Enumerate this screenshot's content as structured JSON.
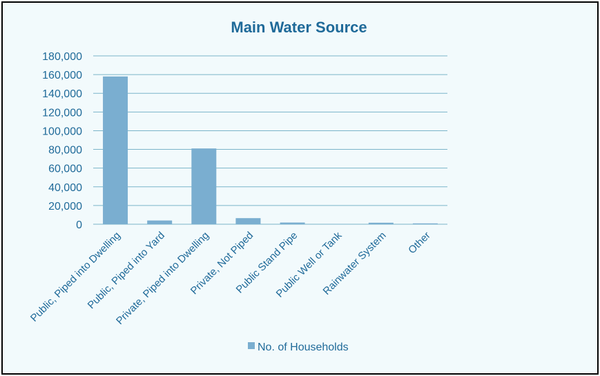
{
  "chart_data": {
    "type": "bar",
    "title": "Main Water Source",
    "categories": [
      "Public, Piped into Dwelling",
      "Public, Piped into Yard",
      "Private, Piped into Dwelling",
      "Private, Not Piped",
      "Public Stand Pipe",
      "Public Well or Tank",
      "Rainwater System",
      "Other"
    ],
    "series": [
      {
        "name": "No. of Households",
        "values": [
          158000,
          4000,
          81000,
          6500,
          1800,
          200,
          1600,
          900
        ]
      }
    ],
    "y_ticks": [
      "0",
      "20,000",
      "40,000",
      "60,000",
      "80,000",
      "100,000",
      "120,000",
      "140,000",
      "160,000",
      "180,000"
    ],
    "ylim": [
      0,
      180000
    ],
    "grid": true,
    "legend": "bottom",
    "colors": {
      "bar": "#7aaed0",
      "text": "#1f6a99",
      "grid": "#7ab4c9",
      "background": "#f2fafc",
      "border": "#000000"
    }
  }
}
